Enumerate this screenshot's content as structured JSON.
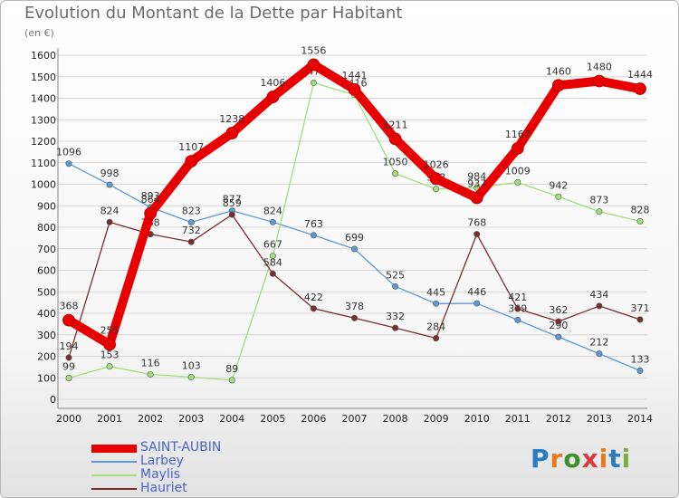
{
  "header": {
    "title": "Evolution du Montant de la Dette par Habitant",
    "unit": "(en €)"
  },
  "logo": {
    "text": "Proxiti",
    "letter_colors": [
      "#2a7bc2",
      "#e87a1c",
      "#3c8f2a",
      "#d43d3d",
      "#e87a1c",
      "#2a7bc2",
      "#78b03c"
    ]
  },
  "colors": {
    "grid": "#d6d6d6",
    "axis": "#888888",
    "tick_text": "#222222",
    "label_text": "#333333",
    "legend_label": "#4a63c8"
  },
  "chart_data": {
    "type": "line",
    "title": "Evolution du Montant de la Dette par Habitant",
    "ylabel": "(en €)",
    "xlabel": "",
    "ylim": [
      0,
      1600
    ],
    "y_ticks": [
      0,
      100,
      200,
      300,
      400,
      500,
      600,
      700,
      800,
      900,
      1000,
      1100,
      1200,
      1300,
      1400,
      1500,
      1600
    ],
    "grid": true,
    "legend_position": "bottom-left",
    "x": [
      "2000",
      "2001",
      "2002",
      "2003",
      "2004",
      "2005",
      "2006",
      "2007",
      "2008",
      "2009",
      "2010",
      "2011",
      "2012",
      "2013",
      "2014"
    ],
    "series": [
      {
        "name": "SAINT-AUBIN",
        "color": "#e80000",
        "emphasis": true,
        "values": [
          368,
          255,
          864,
          1107,
          1238,
          1406,
          1556,
          1441,
          1211,
          1026,
          937,
          1167,
          1460,
          1480,
          1444
        ]
      },
      {
        "name": "Larbey",
        "color": "#5d9ad2",
        "emphasis": false,
        "values": [
          1096,
          998,
          893,
          823,
          877,
          824,
          763,
          699,
          525,
          445,
          446,
          369,
          290,
          212,
          133
        ]
      },
      {
        "name": "Maylis",
        "color": "#9fe07a",
        "emphasis": false,
        "values": [
          99,
          153,
          116,
          103,
          89,
          667,
          1472,
          1416,
          1050,
          978,
          984,
          1009,
          942,
          873,
          828
        ]
      },
      {
        "name": "Hauriet",
        "color": "#7a2d2d",
        "emphasis": false,
        "values": [
          194,
          824,
          768,
          732,
          859,
          584,
          422,
          378,
          332,
          284,
          768,
          421,
          362,
          434,
          371
        ]
      }
    ]
  }
}
